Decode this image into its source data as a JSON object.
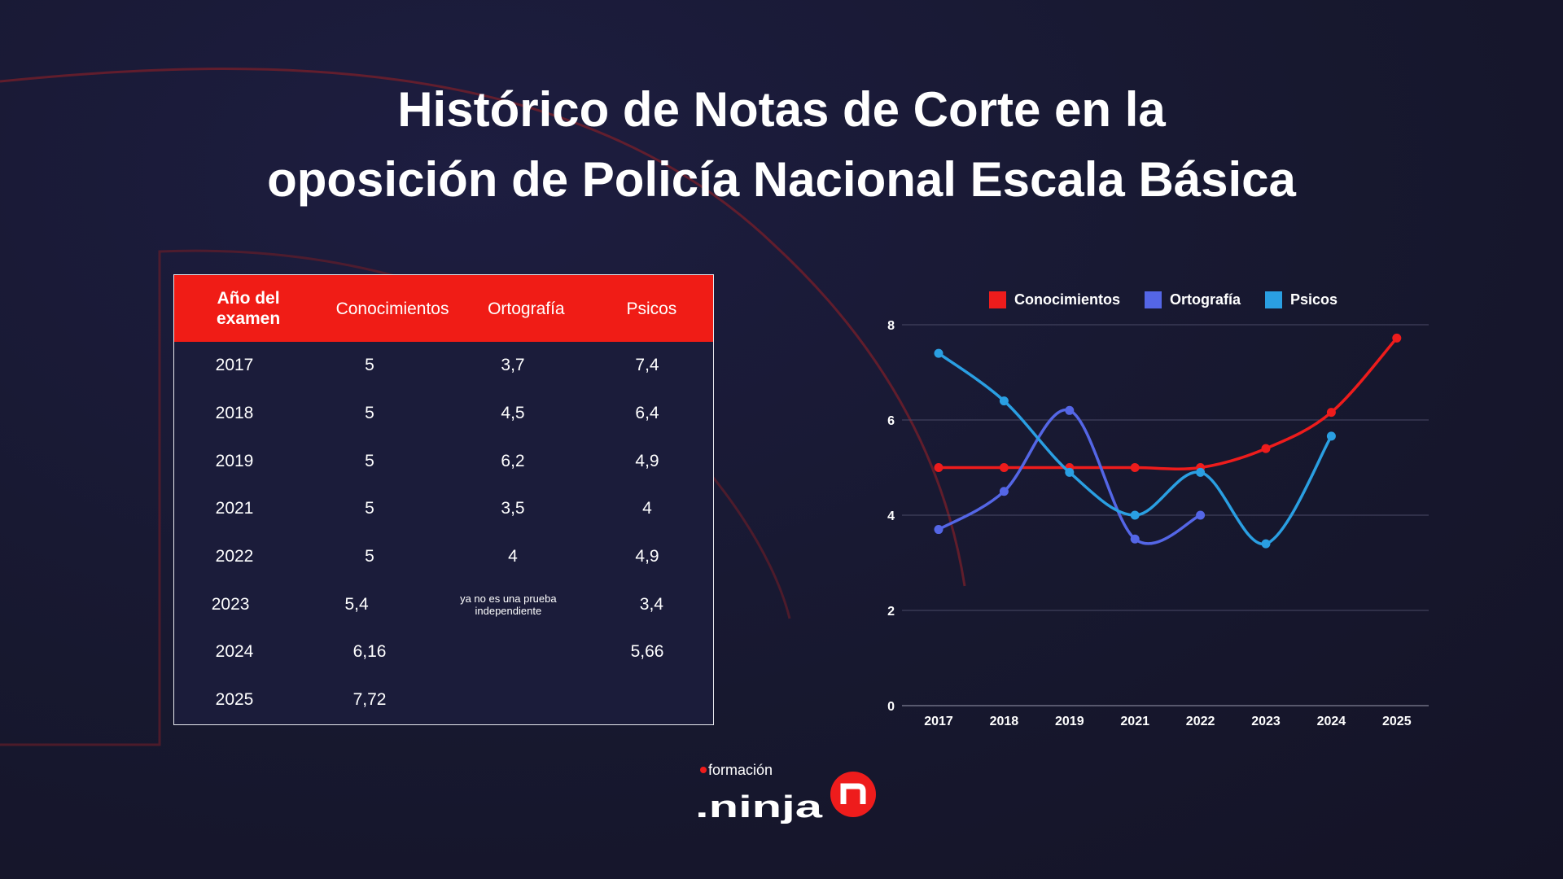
{
  "title": {
    "line1": "Histórico de Notas de Corte en la",
    "line2": "oposición de Policía Nacional Escala Básica"
  },
  "table": {
    "headers": [
      "Año del examen",
      "Conocimientos",
      "Ortografía",
      "Psicos"
    ],
    "rows": [
      [
        "2017",
        "5",
        "3,7",
        "7,4"
      ],
      [
        "2018",
        "5",
        "4,5",
        "6,4"
      ],
      [
        "2019",
        "5",
        "6,2",
        "4,9"
      ],
      [
        "2021",
        "5",
        "3,5",
        "4"
      ],
      [
        "2022",
        "5",
        "4",
        "4,9"
      ],
      [
        "2023",
        "5,4",
        "ya no es una prueba independiente",
        "3,4"
      ],
      [
        "2024",
        "6,16",
        "",
        "5,66"
      ],
      [
        "2025",
        "7,72",
        "",
        ""
      ]
    ]
  },
  "colors": {
    "header_bg": "#f01c16",
    "background": "#17182f"
  },
  "chart_data": {
    "type": "line",
    "categories": [
      "2017",
      "2018",
      "2019",
      "2021",
      "2022",
      "2023",
      "2024",
      "2025"
    ],
    "series": [
      {
        "name": "Conocimientos",
        "color": "#ee1c1c",
        "values": [
          5,
          5,
          5,
          5,
          5,
          5.4,
          6.16,
          7.72
        ]
      },
      {
        "name": "Ortografía",
        "color": "#5466e6",
        "values": [
          3.7,
          4.5,
          6.2,
          3.5,
          4,
          null,
          null,
          null
        ]
      },
      {
        "name": "Psicos",
        "color": "#2a9fe2",
        "values": [
          7.4,
          6.4,
          4.9,
          4,
          4.9,
          3.4,
          5.66,
          null
        ]
      }
    ],
    "ylim": [
      0,
      8
    ],
    "yticks": [
      "0",
      "2",
      "4",
      "6",
      "8"
    ],
    "grid": true,
    "smooth": true,
    "legend_position": "top"
  },
  "logo": {
    "text_top": "formación",
    "text_main": ".ninja",
    "icon": "n-circle-icon",
    "color": "#ee1c1c"
  }
}
